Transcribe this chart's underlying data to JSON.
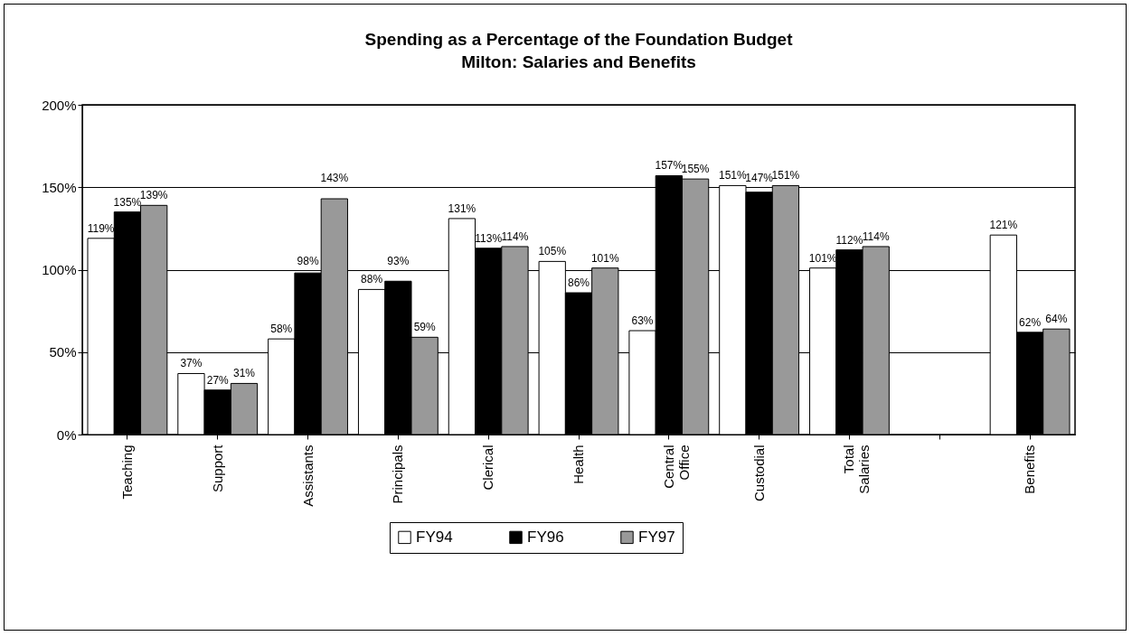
{
  "chart_data": {
    "type": "bar",
    "title": "Spending as a Percentage of the Foundation Budget",
    "subtitle": "Milton:  Salaries and Benefits",
    "categories": [
      "Teaching",
      "Support",
      "Assistants",
      "Principals",
      "Clerical",
      "Health",
      "Central Office",
      "Custodial",
      "Total Salaries",
      null,
      "Benefits"
    ],
    "series": [
      {
        "name": "FY94",
        "color": "#ffffff",
        "values": [
          119,
          37,
          58,
          88,
          131,
          105,
          63,
          151,
          101,
          null,
          121
        ],
        "value_labels": [
          "119%",
          "37%",
          "58%",
          "88%",
          "131%",
          "105%",
          "63%",
          "151%",
          "101%",
          null,
          "121%"
        ]
      },
      {
        "name": "FY96",
        "color": "#000000",
        "values": [
          135,
          27,
          98,
          93,
          113,
          86,
          157,
          147,
          112,
          null,
          62
        ],
        "value_labels": [
          "135%",
          "27%",
          "98%",
          "93%",
          "113%",
          "86%",
          "157%",
          "147%",
          "112%",
          null,
          "62%"
        ]
      },
      {
        "name": "FY97",
        "color": "#999999",
        "values": [
          139,
          31,
          143,
          59,
          114,
          101,
          155,
          151,
          114,
          null,
          64
        ],
        "value_labels": [
          "139%",
          "31%",
          "143%",
          "59%",
          "114%",
          "101%",
          "155%",
          "151%",
          "114%",
          null,
          "64%"
        ]
      }
    ],
    "ylim": [
      0,
      200
    ],
    "yticks": [
      {
        "value": 0,
        "label": "0%"
      },
      {
        "value": 50,
        "label": "50%"
      },
      {
        "value": 100,
        "label": "100%"
      },
      {
        "value": 150,
        "label": "150%"
      },
      {
        "value": 200,
        "label": "200%"
      }
    ],
    "grid": "y",
    "legend": "bottom"
  }
}
